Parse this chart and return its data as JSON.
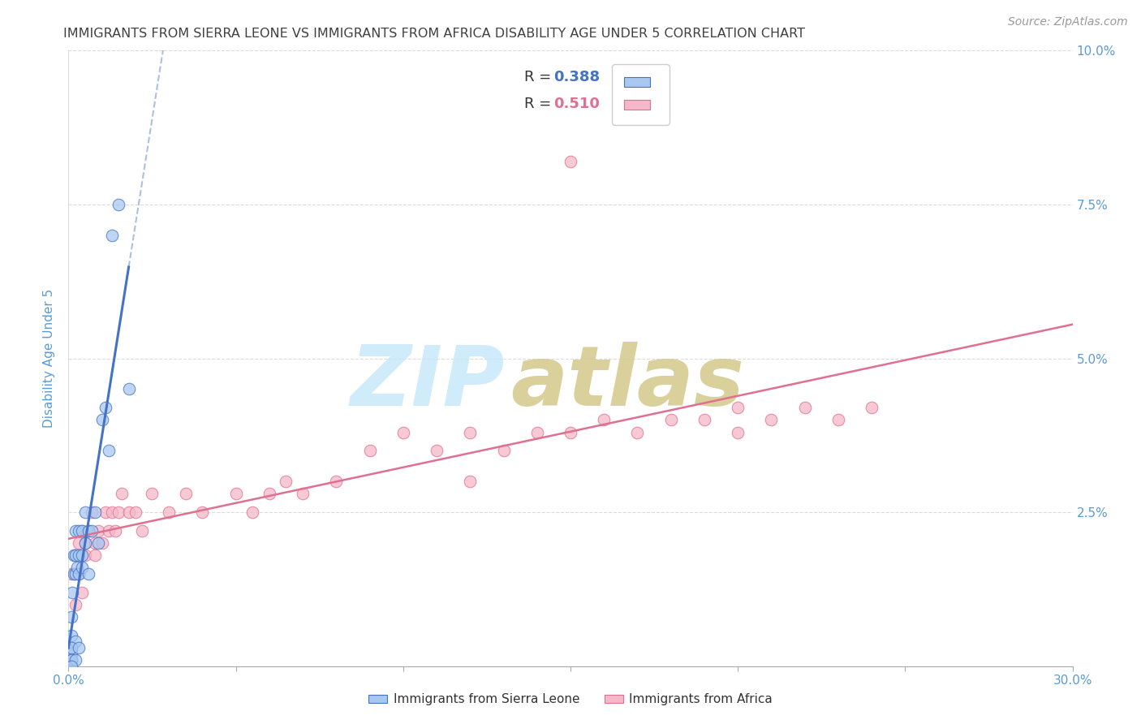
{
  "title": "IMMIGRANTS FROM SIERRA LEONE VS IMMIGRANTS FROM AFRICA DISABILITY AGE UNDER 5 CORRELATION CHART",
  "source": "Source: ZipAtlas.com",
  "ylabel": "Disability Age Under 5",
  "xlim": [
    0.0,
    0.3
  ],
  "ylim": [
    0.0,
    0.1
  ],
  "xticks": [
    0.0,
    0.05,
    0.1,
    0.15,
    0.2,
    0.25,
    0.3
  ],
  "yticks": [
    0.0,
    0.025,
    0.05,
    0.075,
    0.1
  ],
  "sl_color_fill": "#a8c8f0",
  "sl_color_edge": "#4472c4",
  "af_color_fill": "#f5b8c8",
  "af_color_edge": "#e07090",
  "sl_line_color": "#4472c4",
  "af_line_color": "#e07090",
  "axis_tick_color": "#5b9bd5",
  "title_color": "#404040",
  "source_color": "#999999",
  "grid_color": "#cccccc",
  "bg_color": "#ffffff",
  "R_sl": "0.388",
  "N_sl": "39",
  "R_af": "0.510",
  "N_af": "53",
  "sl_label": "Immigrants from Sierra Leone",
  "af_label": "Immigrants from Africa",
  "sl_x": [
    0.0005,
    0.0008,
    0.001,
    0.001,
    0.0012,
    0.0015,
    0.0015,
    0.002,
    0.002,
    0.002,
    0.0025,
    0.003,
    0.003,
    0.003,
    0.004,
    0.004,
    0.004,
    0.005,
    0.005,
    0.006,
    0.006,
    0.007,
    0.008,
    0.009,
    0.01,
    0.011,
    0.012,
    0.013,
    0.015,
    0.018,
    0.001,
    0.002,
    0.001,
    0.0005,
    0.001,
    0.0008,
    0.003,
    0.002,
    0.001
  ],
  "sl_y": [
    0.001,
    0.003,
    0.005,
    0.008,
    0.012,
    0.015,
    0.018,
    0.015,
    0.018,
    0.022,
    0.016,
    0.015,
    0.018,
    0.022,
    0.018,
    0.022,
    0.016,
    0.02,
    0.025,
    0.022,
    0.015,
    0.022,
    0.025,
    0.02,
    0.04,
    0.042,
    0.035,
    0.07,
    0.075,
    0.045,
    0.002,
    0.004,
    0.001,
    0.0,
    0.003,
    0.001,
    0.003,
    0.001,
    0.0
  ],
  "af_x": [
    0.001,
    0.002,
    0.003,
    0.003,
    0.004,
    0.005,
    0.005,
    0.006,
    0.007,
    0.008,
    0.008,
    0.009,
    0.01,
    0.011,
    0.012,
    0.013,
    0.014,
    0.015,
    0.016,
    0.018,
    0.02,
    0.022,
    0.025,
    0.03,
    0.035,
    0.04,
    0.05,
    0.055,
    0.06,
    0.065,
    0.07,
    0.08,
    0.09,
    0.1,
    0.11,
    0.12,
    0.13,
    0.14,
    0.15,
    0.16,
    0.17,
    0.18,
    0.19,
    0.2,
    0.21,
    0.22,
    0.23,
    0.24,
    0.12,
    0.2,
    0.002,
    0.004,
    0.15
  ],
  "af_y": [
    0.015,
    0.018,
    0.02,
    0.015,
    0.022,
    0.018,
    0.02,
    0.022,
    0.025,
    0.018,
    0.02,
    0.022,
    0.02,
    0.025,
    0.022,
    0.025,
    0.022,
    0.025,
    0.028,
    0.025,
    0.025,
    0.022,
    0.028,
    0.025,
    0.028,
    0.025,
    0.028,
    0.025,
    0.028,
    0.03,
    0.028,
    0.03,
    0.035,
    0.038,
    0.035,
    0.038,
    0.035,
    0.038,
    0.038,
    0.04,
    0.038,
    0.04,
    0.04,
    0.042,
    0.04,
    0.042,
    0.04,
    0.042,
    0.03,
    0.038,
    0.01,
    0.012,
    0.082
  ],
  "wm_zip_color": "#c8e8f8",
  "wm_atlas_color": "#d4c88a"
}
